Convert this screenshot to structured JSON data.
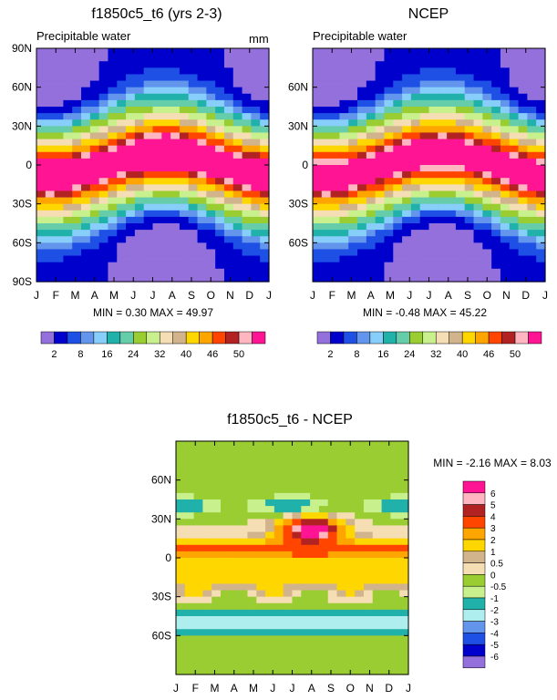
{
  "chart_data": [
    {
      "type": "heatmap",
      "title": "f1850c5_t6 (yrs 2-3)",
      "subtitle": "Precipitable water",
      "units": "mm",
      "variable": "precipitable water",
      "x": [
        "J",
        "F",
        "M",
        "A",
        "M",
        "J",
        "J",
        "A",
        "S",
        "O",
        "N",
        "D",
        "J"
      ],
      "y": [
        "90N",
        "60N",
        "30N",
        "0",
        "30S",
        "60S",
        "90S"
      ],
      "stats": "MIN =  0.30 MAX =  49.97",
      "min": 0.3,
      "max": 49.97,
      "contour_levels": [
        2,
        4,
        6,
        8,
        10,
        12,
        16,
        20,
        24,
        28,
        32,
        36,
        40,
        44,
        46,
        48,
        50
      ],
      "colorbar_labels": [
        "2",
        "8",
        "16",
        "24",
        "32",
        "40",
        "46",
        "50"
      ]
    },
    {
      "type": "heatmap",
      "title": "NCEP",
      "subtitle": "Precipitable water",
      "x": [
        "J",
        "F",
        "M",
        "A",
        "M",
        "J",
        "J",
        "A",
        "S",
        "O",
        "N",
        "D",
        "J"
      ],
      "y": [
        "60N",
        "30N",
        "0",
        "30S",
        "60S"
      ],
      "stats": "MIN =  -0.48 MAX =  45.22",
      "min": -0.48,
      "max": 45.22,
      "contour_levels": [
        2,
        4,
        6,
        8,
        10,
        12,
        16,
        20,
        24,
        28,
        32,
        36,
        40,
        44,
        46,
        48,
        50
      ],
      "colorbar_labels": [
        "2",
        "8",
        "16",
        "24",
        "32",
        "40",
        "46",
        "50"
      ]
    },
    {
      "type": "heatmap",
      "title": "f1850c5_t6 - NCEP",
      "x": [
        "J",
        "F",
        "M",
        "A",
        "M",
        "J",
        "J",
        "A",
        "S",
        "O",
        "N",
        "D",
        "J"
      ],
      "y": [
        "60N",
        "30N",
        "0",
        "30S",
        "60S"
      ],
      "stats": "MIN =  -2.16 MAX =   8.03",
      "min": -2.16,
      "max": 8.03,
      "contour_levels": [
        -6,
        -5,
        -4,
        -3,
        -2,
        -1,
        -0.5,
        0,
        0.5,
        1,
        2,
        3,
        4,
        5,
        6
      ],
      "colorbar_labels": [
        "6",
        "5",
        "4",
        "3",
        "2",
        "1",
        "0.5",
        "0",
        "-0.5",
        "-1",
        "-2",
        "-3",
        "-4",
        "-5",
        "-6"
      ]
    }
  ],
  "colors": {
    "seq": [
      "#9370DB",
      "#0000CD",
      "#1E50E6",
      "#6495ED",
      "#87CEFA",
      "#20B2AA",
      "#66CDAA",
      "#9ACD32",
      "#C8F08C",
      "#F5DEB3",
      "#D2B48C",
      "#FFD700",
      "#FFA500",
      "#FF4500",
      "#B22222",
      "#FFB6C1",
      "#FF1493"
    ],
    "diff": [
      "#FF1493",
      "#FFB6C1",
      "#B22222",
      "#FF4500",
      "#FFA500",
      "#FFD700",
      "#D2B48C",
      "#F5DEB3",
      "#9ACD32",
      "#C8F08C",
      "#20B2AA",
      "#AFEEEE",
      "#6495ED",
      "#1E50E6",
      "#0000CD",
      "#9370DB"
    ]
  }
}
